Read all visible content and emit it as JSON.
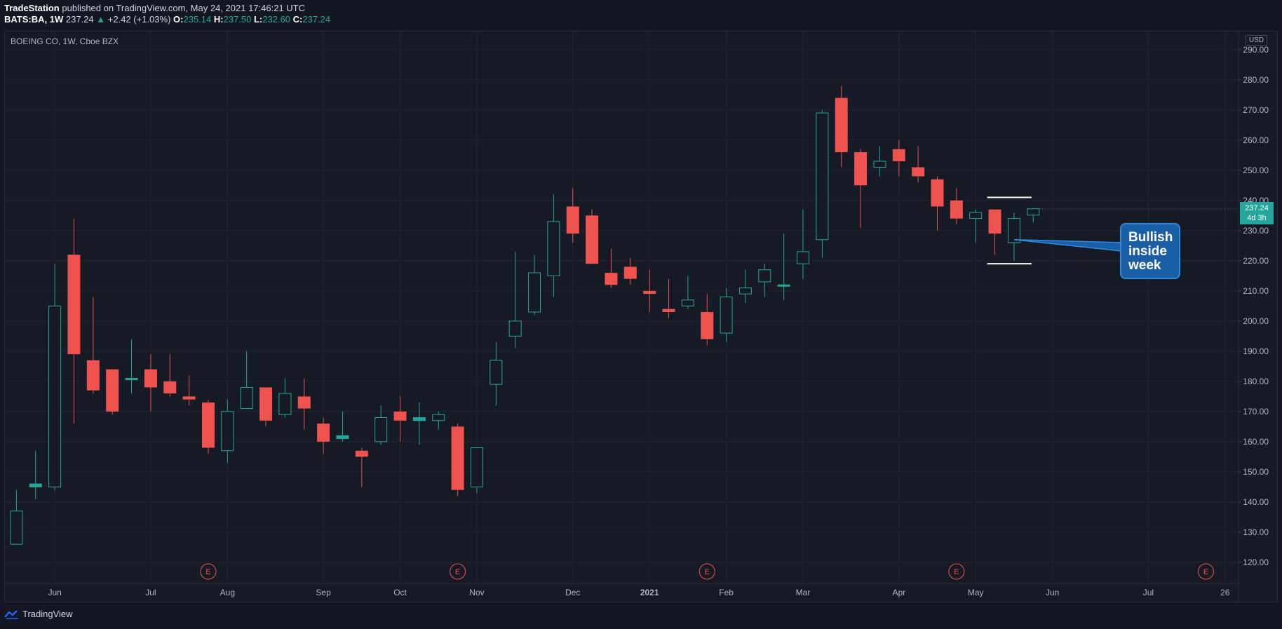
{
  "header": {
    "publisher": "TradeStation",
    "publish_text": " published on TradingView.com, May 24, 2021 17:46:21 UTC",
    "symbol": "BATS:BA, 1W",
    "last": "237.24",
    "change_arrow": "▲",
    "change": "+2.42 (+1.03%)",
    "o_label": "O:",
    "o_value": "235.14",
    "h_label": "H:",
    "h_value": "237.50",
    "l_label": "L:",
    "l_value": "232.60",
    "c_label": "C:",
    "c_value": "237.24"
  },
  "chart": {
    "title": "BOEING CO, 1W, Cboe BZX",
    "currency": "USD",
    "price_tag": "237.24",
    "countdown": "4d 3h",
    "annotation_lines": [
      "Bullish",
      "inside",
      "week"
    ],
    "earnings_marker": "E"
  },
  "footer": {
    "brand": "TradingView"
  },
  "colors": {
    "up": "#26a69a",
    "down": "#ef5350",
    "background": "#161a25",
    "grid": "#232733",
    "callout": "#1a5fa6"
  },
  "chart_data": {
    "type": "candlestick",
    "title": "BOEING CO, 1W, Cboe BZX",
    "y_axis": {
      "ticks": [
        "120.00",
        "130.00",
        "140.00",
        "150.00",
        "160.00",
        "170.00",
        "180.00",
        "190.00",
        "200.00",
        "210.00",
        "220.00",
        "230.00",
        "240.00",
        "250.00",
        "260.00",
        "270.00",
        "280.00",
        "290.00"
      ],
      "range": [
        113,
        296
      ]
    },
    "x_axis": {
      "labels": [
        "Jun",
        "Jul",
        "Aug",
        "Sep",
        "Oct",
        "Nov",
        "Dec",
        "2021",
        "Feb",
        "Mar",
        "Apr",
        "May",
        "Jun",
        "Jul",
        "26"
      ],
      "label_weeks": [
        2,
        7,
        11,
        16,
        20,
        24,
        29,
        33,
        37,
        41,
        46,
        50,
        54,
        59,
        63
      ],
      "week_range": [
        -0.6,
        63.7
      ]
    },
    "earnings_weeks": [
      10,
      23,
      36,
      49,
      62
    ],
    "candles": [
      {
        "w": 0,
        "o": 126,
        "h": 144,
        "l": 126,
        "c": 137
      },
      {
        "w": 1,
        "o": 145,
        "h": 157,
        "l": 141,
        "c": 146
      },
      {
        "w": 2,
        "o": 145,
        "h": 219,
        "l": 144,
        "c": 205
      },
      {
        "w": 3,
        "o": 222,
        "h": 234,
        "l": 166,
        "c": 189
      },
      {
        "w": 4,
        "o": 187,
        "h": 208,
        "l": 176,
        "c": 177
      },
      {
        "w": 5,
        "o": 184,
        "h": 184,
        "l": 169,
        "c": 170
      },
      {
        "w": 6,
        "o": 181,
        "h": 194,
        "l": 176,
        "c": 181
      },
      {
        "w": 7,
        "o": 184,
        "h": 189,
        "l": 170,
        "c": 178
      },
      {
        "w": 8,
        "o": 180,
        "h": 189,
        "l": 175,
        "c": 176
      },
      {
        "w": 9,
        "o": 175,
        "h": 182,
        "l": 172,
        "c": 174
      },
      {
        "w": 10,
        "o": 173,
        "h": 174,
        "l": 156,
        "c": 158
      },
      {
        "w": 11,
        "o": 157,
        "h": 174,
        "l": 153,
        "c": 170
      },
      {
        "w": 12,
        "o": 171,
        "h": 190,
        "l": 171,
        "c": 178
      },
      {
        "w": 13,
        "o": 178,
        "h": 178,
        "l": 165,
        "c": 167
      },
      {
        "w": 14,
        "o": 169,
        "h": 181,
        "l": 168,
        "c": 176
      },
      {
        "w": 15,
        "o": 175,
        "h": 181,
        "l": 164,
        "c": 171
      },
      {
        "w": 16,
        "o": 166,
        "h": 168,
        "l": 156,
        "c": 160
      },
      {
        "w": 17,
        "o": 161,
        "h": 170,
        "l": 160,
        "c": 162
      },
      {
        "w": 18,
        "o": 157,
        "h": 158,
        "l": 145,
        "c": 155
      },
      {
        "w": 19,
        "o": 160,
        "h": 172,
        "l": 159,
        "c": 168
      },
      {
        "w": 20,
        "o": 170,
        "h": 175,
        "l": 160,
        "c": 167
      },
      {
        "w": 21,
        "o": 167,
        "h": 173,
        "l": 159,
        "c": 168
      },
      {
        "w": 22,
        "o": 167,
        "h": 170,
        "l": 164,
        "c": 169
      },
      {
        "w": 23,
        "o": 165,
        "h": 166,
        "l": 142,
        "c": 144
      },
      {
        "w": 24,
        "o": 145,
        "h": 158,
        "l": 143,
        "c": 158
      },
      {
        "w": 25,
        "o": 179,
        "h": 193,
        "l": 172,
        "c": 187
      },
      {
        "w": 26,
        "o": 195,
        "h": 223,
        "l": 191,
        "c": 200
      },
      {
        "w": 27,
        "o": 203,
        "h": 222,
        "l": 202,
        "c": 216
      },
      {
        "w": 28,
        "o": 215,
        "h": 242,
        "l": 208,
        "c": 233
      },
      {
        "w": 29,
        "o": 238,
        "h": 244,
        "l": 226,
        "c": 229
      },
      {
        "w": 30,
        "o": 235,
        "h": 237,
        "l": 219,
        "c": 219
      },
      {
        "w": 31,
        "o": 216,
        "h": 224,
        "l": 211,
        "c": 212
      },
      {
        "w": 32,
        "o": 218,
        "h": 221,
        "l": 212,
        "c": 214
      },
      {
        "w": 33,
        "o": 210,
        "h": 217,
        "l": 203,
        "c": 209
      },
      {
        "w": 34,
        "o": 204,
        "h": 214,
        "l": 201,
        "c": 203
      },
      {
        "w": 35,
        "o": 205,
        "h": 215,
        "l": 204,
        "c": 207
      },
      {
        "w": 36,
        "o": 203,
        "h": 209,
        "l": 192,
        "c": 194
      },
      {
        "w": 37,
        "o": 196,
        "h": 211,
        "l": 193,
        "c": 208
      },
      {
        "w": 38,
        "o": 209,
        "h": 217,
        "l": 206,
        "c": 211
      },
      {
        "w": 39,
        "o": 213,
        "h": 219,
        "l": 208,
        "c": 217
      },
      {
        "w": 40,
        "o": 212,
        "h": 229,
        "l": 207,
        "c": 212
      },
      {
        "w": 41,
        "o": 219,
        "h": 237,
        "l": 214,
        "c": 223
      },
      {
        "w": 42,
        "o": 227,
        "h": 270,
        "l": 221,
        "c": 269
      },
      {
        "w": 43,
        "o": 274,
        "h": 278,
        "l": 251,
        "c": 256
      },
      {
        "w": 44,
        "o": 256,
        "h": 257,
        "l": 231,
        "c": 245
      },
      {
        "w": 45,
        "o": 251,
        "h": 258,
        "l": 248,
        "c": 253
      },
      {
        "w": 46,
        "o": 257,
        "h": 260,
        "l": 248,
        "c": 253
      },
      {
        "w": 47,
        "o": 251,
        "h": 258,
        "l": 246,
        "c": 248
      },
      {
        "w": 48,
        "o": 247,
        "h": 248,
        "l": 230,
        "c": 238
      },
      {
        "w": 49,
        "o": 240,
        "h": 244,
        "l": 232,
        "c": 234
      },
      {
        "w": 50,
        "o": 234,
        "h": 237,
        "l": 226,
        "c": 236
      },
      {
        "w": 51,
        "o": 237,
        "h": 237,
        "l": 222,
        "c": 229
      },
      {
        "w": 52,
        "o": 226,
        "h": 236,
        "l": 220,
        "c": 234
      },
      {
        "w": 53,
        "o": 235.14,
        "h": 237.5,
        "l": 232.6,
        "c": 237.24
      }
    ],
    "current_price": 237.24,
    "inside_week_box": {
      "start_week": 51,
      "end_week": 52,
      "high": 241,
      "low": 219
    },
    "annotation_target": {
      "week": 52,
      "price": 227
    }
  }
}
